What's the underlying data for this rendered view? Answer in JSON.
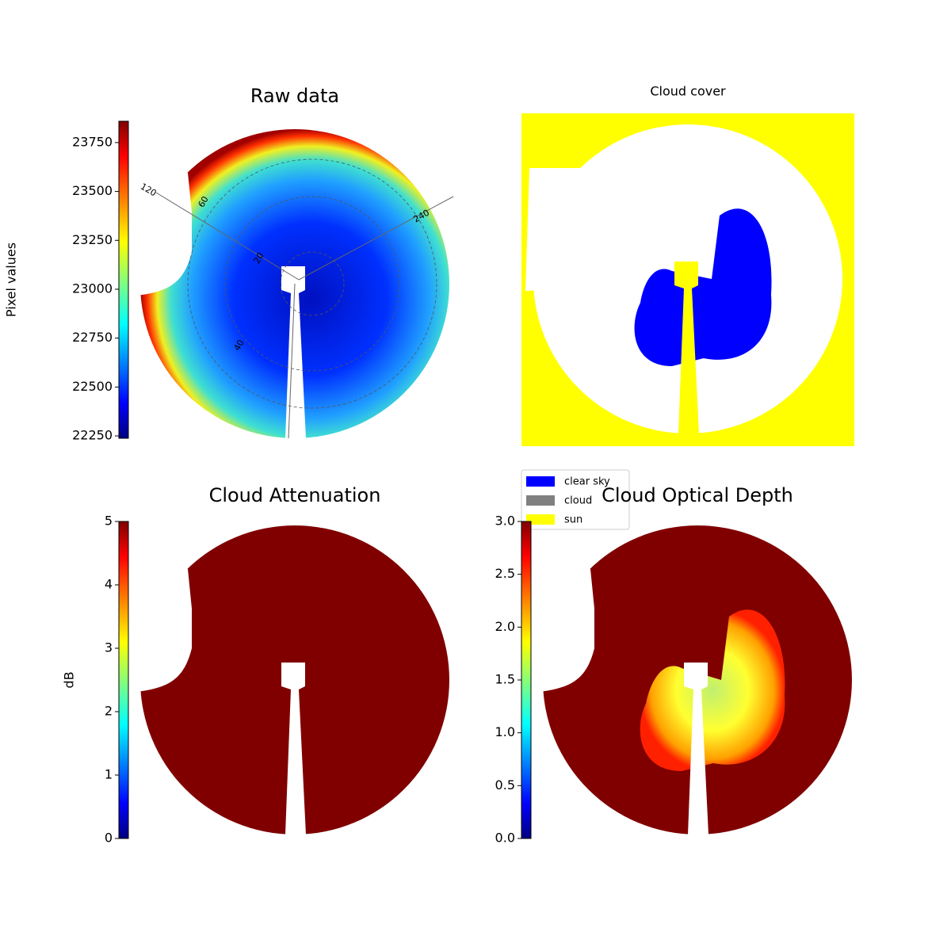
{
  "chart_data": [
    {
      "type": "image",
      "title": "Raw data",
      "colormap": "jet",
      "colorbar": {
        "label": "Pixel values",
        "lim": [
          22238,
          23859
        ],
        "ticks": [
          22250,
          22500,
          22750,
          23000,
          23250,
          23500,
          23750
        ]
      },
      "grid_labels": [
        "120",
        "60",
        "240",
        "20",
        "40"
      ]
    },
    {
      "type": "image",
      "title": "Cloud cover",
      "legend": [
        {
          "name": "clear sky",
          "color": "#0000ff"
        },
        {
          "name": "cloud",
          "color": "#808080"
        },
        {
          "name": "sun",
          "color": "#ffff00"
        }
      ]
    },
    {
      "type": "image",
      "title": "Cloud Attenuation",
      "colormap": "jet",
      "colorbar": {
        "label": "dB",
        "lim": [
          0,
          5
        ],
        "ticks": [
          0,
          1,
          2,
          3,
          4,
          5
        ]
      }
    },
    {
      "type": "image",
      "title": "Cloud Optical Depth",
      "colormap": "jet",
      "colorbar": {
        "lim": [
          0,
          3
        ],
        "ticks": [
          {
            "value": 0,
            "label": "0.0"
          },
          0.5,
          {
            "value": 1,
            "label": "1.0"
          },
          1.5,
          {
            "value": 2,
            "label": "2.0"
          },
          2.5,
          {
            "value": 3,
            "label": "3.0"
          }
        ]
      }
    }
  ]
}
